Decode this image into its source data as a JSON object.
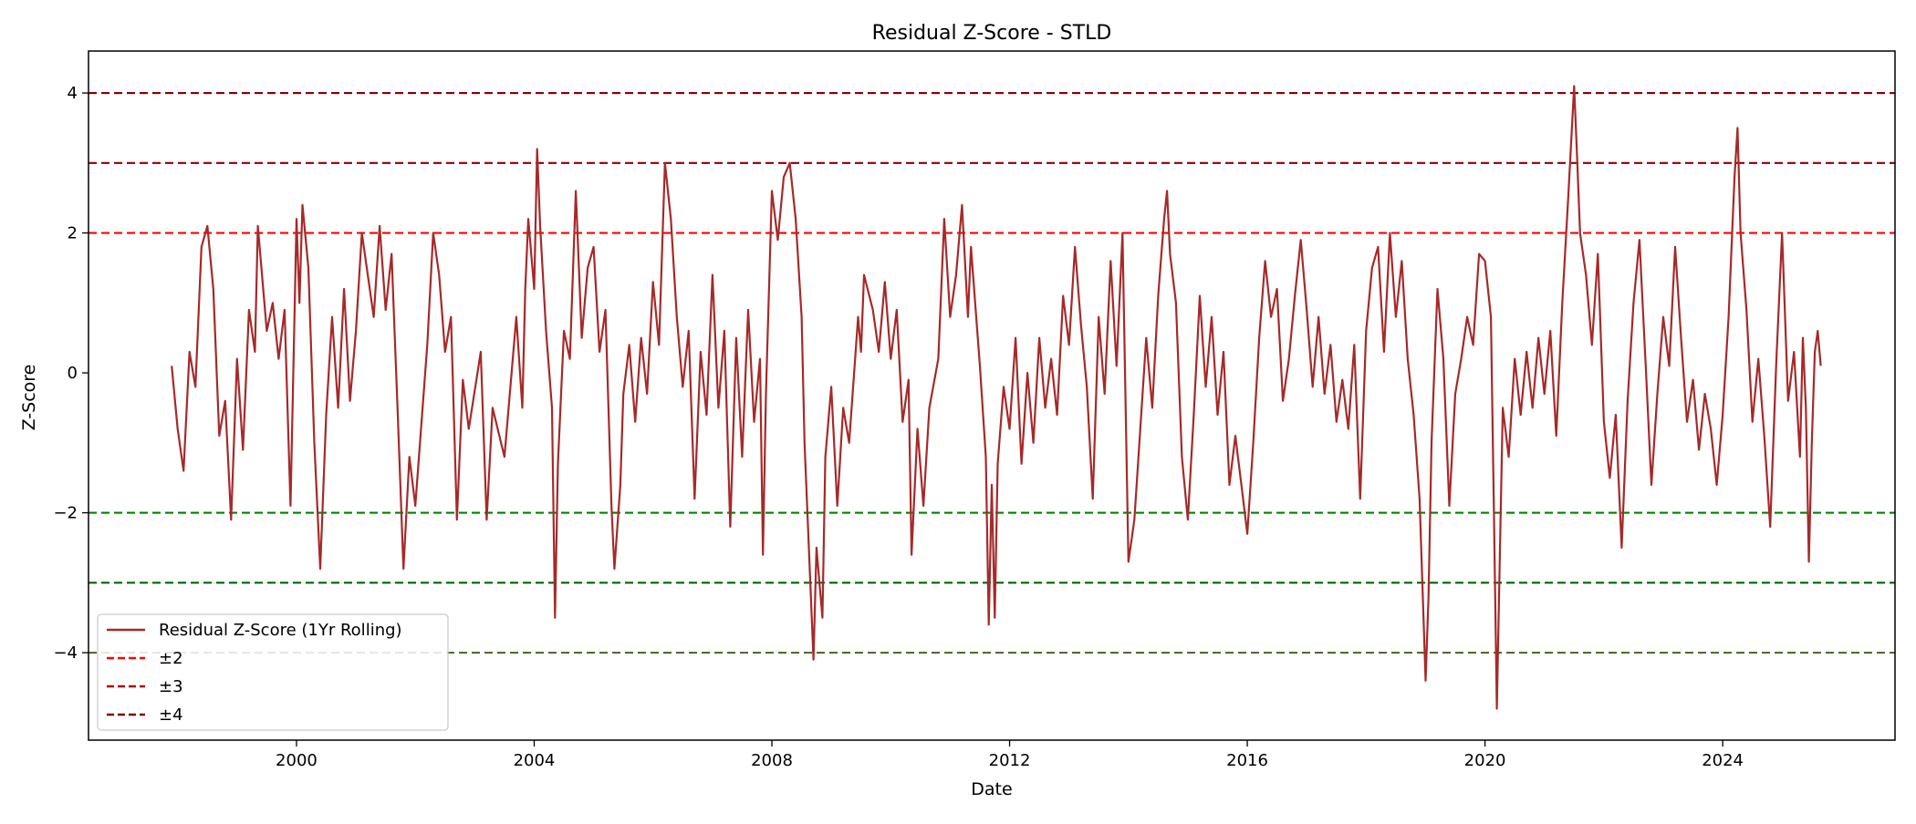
{
  "chart_data": {
    "type": "line",
    "title": "Residual Z-Score - STLD",
    "xlabel": "Date",
    "ylabel": "Z-Score",
    "xlim": [
      1996.5,
      2026.9
    ],
    "ylim": [
      -5.25,
      4.6
    ],
    "x_ticks": [
      2000,
      2004,
      2008,
      2012,
      2016,
      2020,
      2024
    ],
    "x_tick_labels": [
      "2000",
      "2004",
      "2008",
      "2012",
      "2016",
      "2020",
      "2024"
    ],
    "y_ticks": [
      -4,
      -2,
      0,
      2,
      4
    ],
    "y_tick_labels": [
      "−4",
      "−2",
      "0",
      "2",
      "4"
    ],
    "grid": false,
    "legend_position": "lower-left",
    "legend": [
      {
        "label": "Residual Z-Score (1Yr Rolling)",
        "style": "solid",
        "color": "#a52a2a"
      },
      {
        "label": "±2",
        "style": "dashed",
        "color": "#ff0000"
      },
      {
        "label": "±3",
        "style": "dashed",
        "color": "#b00000"
      },
      {
        "label": "±4",
        "style": "dashed",
        "color": "#800000"
      }
    ],
    "reference_lines": [
      {
        "y": 4,
        "color": "#8b0000"
      },
      {
        "y": 3,
        "color": "#8b0000"
      },
      {
        "y": 2,
        "color": "#ff0000"
      },
      {
        "y": -2,
        "color": "#008000"
      },
      {
        "y": -3,
        "color": "#006400"
      },
      {
        "y": -4,
        "color": "#556b2f"
      }
    ],
    "series": [
      {
        "color": "#a52a2a",
        "points": [
          [
            1997.9,
            0.1
          ],
          [
            1998.0,
            -0.8
          ],
          [
            1998.1,
            -1.4
          ],
          [
            1998.2,
            0.3
          ],
          [
            1998.3,
            -0.2
          ],
          [
            1998.4,
            1.8
          ],
          [
            1998.5,
            2.1
          ],
          [
            1998.6,
            1.2
          ],
          [
            1998.7,
            -0.9
          ],
          [
            1998.8,
            -0.4
          ],
          [
            1998.9,
            -2.1
          ],
          [
            1999.0,
            0.2
          ],
          [
            1999.1,
            -1.1
          ],
          [
            1999.2,
            0.9
          ],
          [
            1999.3,
            0.3
          ],
          [
            1999.35,
            2.1
          ],
          [
            1999.5,
            0.6
          ],
          [
            1999.6,
            1.0
          ],
          [
            1999.7,
            0.2
          ],
          [
            1999.8,
            0.9
          ],
          [
            1999.9,
            -1.9
          ],
          [
            2000.0,
            2.2
          ],
          [
            2000.05,
            1.0
          ],
          [
            2000.1,
            2.4
          ],
          [
            2000.2,
            1.5
          ],
          [
            2000.3,
            -1.0
          ],
          [
            2000.4,
            -2.8
          ],
          [
            2000.5,
            -0.6
          ],
          [
            2000.6,
            0.8
          ],
          [
            2000.7,
            -0.5
          ],
          [
            2000.8,
            1.2
          ],
          [
            2000.9,
            -0.4
          ],
          [
            2001.0,
            0.6
          ],
          [
            2001.1,
            2.0
          ],
          [
            2001.3,
            0.8
          ],
          [
            2001.4,
            2.1
          ],
          [
            2001.5,
            0.9
          ],
          [
            2001.6,
            1.7
          ],
          [
            2001.7,
            -0.5
          ],
          [
            2001.8,
            -2.8
          ],
          [
            2001.9,
            -1.2
          ],
          [
            2002.0,
            -1.9
          ],
          [
            2002.2,
            0.4
          ],
          [
            2002.3,
            2.0
          ],
          [
            2002.4,
            1.4
          ],
          [
            2002.5,
            0.3
          ],
          [
            2002.6,
            0.8
          ],
          [
            2002.7,
            -2.1
          ],
          [
            2002.8,
            -0.1
          ],
          [
            2002.9,
            -0.8
          ],
          [
            2003.1,
            0.3
          ],
          [
            2003.2,
            -2.1
          ],
          [
            2003.3,
            -0.5
          ],
          [
            2003.5,
            -1.2
          ],
          [
            2003.7,
            0.8
          ],
          [
            2003.8,
            -0.5
          ],
          [
            2003.85,
            1.2
          ],
          [
            2003.9,
            2.2
          ],
          [
            2004.0,
            1.2
          ],
          [
            2004.05,
            3.2
          ],
          [
            2004.1,
            2.1
          ],
          [
            2004.2,
            0.6
          ],
          [
            2004.3,
            -0.5
          ],
          [
            2004.35,
            -3.5
          ],
          [
            2004.4,
            -1.3
          ],
          [
            2004.5,
            0.6
          ],
          [
            2004.6,
            0.2
          ],
          [
            2004.7,
            2.6
          ],
          [
            2004.8,
            0.5
          ],
          [
            2004.9,
            1.5
          ],
          [
            2005.0,
            1.8
          ],
          [
            2005.1,
            0.3
          ],
          [
            2005.2,
            0.9
          ],
          [
            2005.3,
            -1.9
          ],
          [
            2005.35,
            -2.8
          ],
          [
            2005.45,
            -1.6
          ],
          [
            2005.5,
            -0.3
          ],
          [
            2005.6,
            0.4
          ],
          [
            2005.7,
            -0.7
          ],
          [
            2005.8,
            0.5
          ],
          [
            2005.9,
            -0.3
          ],
          [
            2006.0,
            1.3
          ],
          [
            2006.1,
            0.4
          ],
          [
            2006.2,
            3.0
          ],
          [
            2006.3,
            2.2
          ],
          [
            2006.4,
            0.8
          ],
          [
            2006.5,
            -0.2
          ],
          [
            2006.6,
            0.6
          ],
          [
            2006.7,
            -1.8
          ],
          [
            2006.8,
            0.3
          ],
          [
            2006.9,
            -0.6
          ],
          [
            2007.0,
            1.4
          ],
          [
            2007.1,
            -0.5
          ],
          [
            2007.2,
            0.6
          ],
          [
            2007.3,
            -2.2
          ],
          [
            2007.4,
            0.5
          ],
          [
            2007.5,
            -1.2
          ],
          [
            2007.6,
            0.9
          ],
          [
            2007.7,
            -0.7
          ],
          [
            2007.8,
            0.2
          ],
          [
            2007.85,
            -2.6
          ],
          [
            2007.9,
            -0.3
          ],
          [
            2008.0,
            2.6
          ],
          [
            2008.1,
            1.9
          ],
          [
            2008.2,
            2.8
          ],
          [
            2008.3,
            3.0
          ],
          [
            2008.4,
            2.2
          ],
          [
            2008.5,
            0.8
          ],
          [
            2008.55,
            -1.0
          ],
          [
            2008.7,
            -4.1
          ],
          [
            2008.75,
            -2.5
          ],
          [
            2008.85,
            -3.5
          ],
          [
            2008.9,
            -1.2
          ],
          [
            2009.0,
            -0.2
          ],
          [
            2009.1,
            -1.9
          ],
          [
            2009.2,
            -0.5
          ],
          [
            2009.3,
            -1.0
          ],
          [
            2009.45,
            0.8
          ],
          [
            2009.5,
            0.3
          ],
          [
            2009.55,
            1.4
          ],
          [
            2009.7,
            0.9
          ],
          [
            2009.8,
            0.3
          ],
          [
            2009.9,
            1.3
          ],
          [
            2010.0,
            0.2
          ],
          [
            2010.1,
            0.9
          ],
          [
            2010.2,
            -0.7
          ],
          [
            2010.3,
            -0.1
          ],
          [
            2010.35,
            -2.6
          ],
          [
            2010.45,
            -0.8
          ],
          [
            2010.55,
            -1.9
          ],
          [
            2010.65,
            -0.5
          ],
          [
            2010.8,
            0.2
          ],
          [
            2010.9,
            2.2
          ],
          [
            2011.0,
            0.8
          ],
          [
            2011.1,
            1.4
          ],
          [
            2011.2,
            2.4
          ],
          [
            2011.3,
            0.8
          ],
          [
            2011.35,
            1.8
          ],
          [
            2011.5,
            0.1
          ],
          [
            2011.6,
            -1.2
          ],
          [
            2011.65,
            -3.6
          ],
          [
            2011.7,
            -1.6
          ],
          [
            2011.75,
            -3.5
          ],
          [
            2011.8,
            -1.3
          ],
          [
            2011.9,
            -0.2
          ],
          [
            2012.0,
            -0.8
          ],
          [
            2012.1,
            0.5
          ],
          [
            2012.2,
            -1.3
          ],
          [
            2012.3,
            0.0
          ],
          [
            2012.4,
            -1.0
          ],
          [
            2012.5,
            0.5
          ],
          [
            2012.6,
            -0.5
          ],
          [
            2012.7,
            0.2
          ],
          [
            2012.8,
            -0.6
          ],
          [
            2012.9,
            1.1
          ],
          [
            2013.0,
            0.4
          ],
          [
            2013.1,
            1.8
          ],
          [
            2013.2,
            0.7
          ],
          [
            2013.3,
            -0.2
          ],
          [
            2013.4,
            -1.8
          ],
          [
            2013.5,
            0.8
          ],
          [
            2013.6,
            -0.3
          ],
          [
            2013.7,
            1.6
          ],
          [
            2013.8,
            0.1
          ],
          [
            2013.9,
            2.0
          ],
          [
            2014.0,
            -2.7
          ],
          [
            2014.1,
            -2.1
          ],
          [
            2014.2,
            -0.8
          ],
          [
            2014.3,
            0.5
          ],
          [
            2014.4,
            -0.5
          ],
          [
            2014.5,
            1.1
          ],
          [
            2014.6,
            2.2
          ],
          [
            2014.65,
            2.6
          ],
          [
            2014.7,
            1.7
          ],
          [
            2014.8,
            1.0
          ],
          [
            2014.9,
            -1.2
          ],
          [
            2015.0,
            -2.1
          ],
          [
            2015.1,
            -0.6
          ],
          [
            2015.2,
            1.1
          ],
          [
            2015.3,
            -0.2
          ],
          [
            2015.4,
            0.8
          ],
          [
            2015.5,
            -0.6
          ],
          [
            2015.6,
            0.3
          ],
          [
            2015.7,
            -1.6
          ],
          [
            2015.8,
            -0.9
          ],
          [
            2015.9,
            -1.6
          ],
          [
            2016.0,
            -2.3
          ],
          [
            2016.1,
            -1.0
          ],
          [
            2016.2,
            0.5
          ],
          [
            2016.3,
            1.6
          ],
          [
            2016.4,
            0.8
          ],
          [
            2016.5,
            1.2
          ],
          [
            2016.6,
            -0.4
          ],
          [
            2016.7,
            0.2
          ],
          [
            2016.8,
            1.1
          ],
          [
            2016.9,
            1.9
          ],
          [
            2017.0,
            0.9
          ],
          [
            2017.1,
            -0.2
          ],
          [
            2017.2,
            0.8
          ],
          [
            2017.3,
            -0.3
          ],
          [
            2017.4,
            0.4
          ],
          [
            2017.5,
            -0.7
          ],
          [
            2017.6,
            -0.1
          ],
          [
            2017.7,
            -0.8
          ],
          [
            2017.8,
            0.4
          ],
          [
            2017.9,
            -1.8
          ],
          [
            2018.0,
            0.6
          ],
          [
            2018.1,
            1.5
          ],
          [
            2018.2,
            1.8
          ],
          [
            2018.3,
            0.3
          ],
          [
            2018.4,
            2.0
          ],
          [
            2018.5,
            0.8
          ],
          [
            2018.6,
            1.6
          ],
          [
            2018.7,
            0.2
          ],
          [
            2018.8,
            -0.6
          ],
          [
            2018.9,
            -1.8
          ],
          [
            2019.0,
            -4.4
          ],
          [
            2019.05,
            -3.2
          ],
          [
            2019.1,
            -1.0
          ],
          [
            2019.2,
            1.2
          ],
          [
            2019.3,
            0.2
          ],
          [
            2019.4,
            -1.9
          ],
          [
            2019.5,
            -0.3
          ],
          [
            2019.6,
            0.2
          ],
          [
            2019.7,
            0.8
          ],
          [
            2019.8,
            0.4
          ],
          [
            2019.9,
            1.7
          ],
          [
            2020.0,
            1.6
          ],
          [
            2020.1,
            0.8
          ],
          [
            2020.15,
            -2.0
          ],
          [
            2020.2,
            -4.8
          ],
          [
            2020.25,
            -2.6
          ],
          [
            2020.3,
            -0.5
          ],
          [
            2020.4,
            -1.2
          ],
          [
            2020.5,
            0.2
          ],
          [
            2020.6,
            -0.6
          ],
          [
            2020.7,
            0.3
          ],
          [
            2020.8,
            -0.5
          ],
          [
            2020.9,
            0.5
          ],
          [
            2021.0,
            -0.3
          ],
          [
            2021.1,
            0.6
          ],
          [
            2021.2,
            -0.9
          ],
          [
            2021.3,
            1.0
          ],
          [
            2021.4,
            2.5
          ],
          [
            2021.5,
            4.1
          ],
          [
            2021.55,
            3.1
          ],
          [
            2021.6,
            2.0
          ],
          [
            2021.7,
            1.4
          ],
          [
            2021.8,
            0.4
          ],
          [
            2021.9,
            1.7
          ],
          [
            2022.0,
            -0.7
          ],
          [
            2022.1,
            -1.5
          ],
          [
            2022.2,
            -0.6
          ],
          [
            2022.3,
            -2.5
          ],
          [
            2022.4,
            -0.4
          ],
          [
            2022.5,
            1.0
          ],
          [
            2022.6,
            1.9
          ],
          [
            2022.7,
            0.2
          ],
          [
            2022.8,
            -1.6
          ],
          [
            2022.9,
            -0.3
          ],
          [
            2023.0,
            0.8
          ],
          [
            2023.1,
            0.1
          ],
          [
            2023.2,
            1.8
          ],
          [
            2023.3,
            0.5
          ],
          [
            2023.4,
            -0.7
          ],
          [
            2023.5,
            -0.1
          ],
          [
            2023.6,
            -1.1
          ],
          [
            2023.7,
            -0.3
          ],
          [
            2023.8,
            -0.8
          ],
          [
            2023.9,
            -1.6
          ],
          [
            2024.0,
            -0.6
          ],
          [
            2024.1,
            0.8
          ],
          [
            2024.2,
            2.8
          ],
          [
            2024.25,
            3.5
          ],
          [
            2024.3,
            2.0
          ],
          [
            2024.4,
            0.9
          ],
          [
            2024.5,
            -0.7
          ],
          [
            2024.6,
            0.2
          ],
          [
            2024.7,
            -0.9
          ],
          [
            2024.8,
            -2.2
          ],
          [
            2024.9,
            0.1
          ],
          [
            2025.0,
            2.0
          ],
          [
            2025.1,
            -0.4
          ],
          [
            2025.2,
            0.3
          ],
          [
            2025.3,
            -1.2
          ],
          [
            2025.35,
            0.5
          ],
          [
            2025.4,
            -0.5
          ],
          [
            2025.45,
            -2.7
          ],
          [
            2025.5,
            -1.0
          ],
          [
            2025.55,
            0.3
          ],
          [
            2025.6,
            0.6
          ],
          [
            2025.65,
            0.1
          ]
        ]
      }
    ]
  }
}
